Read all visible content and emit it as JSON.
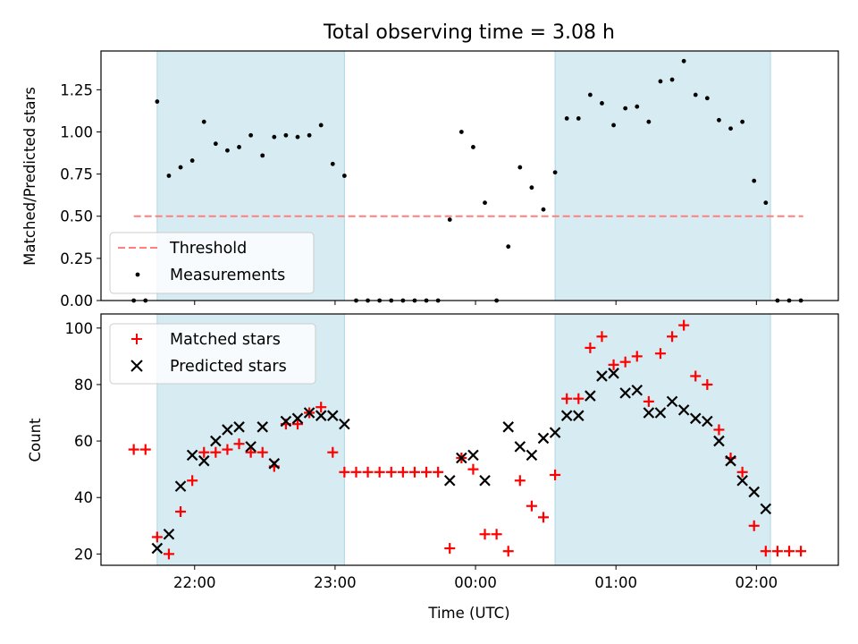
{
  "chart_data": [
    {
      "type": "scatter",
      "title": "Total observing time = 3.08 h",
      "xlabel": "",
      "ylabel": "Matched/Predicted stars",
      "xlim": [
        "21:20",
        "02:35"
      ],
      "ylim": [
        0,
        1.48
      ],
      "yticks": [
        0.0,
        0.25,
        0.5,
        0.75,
        1.0,
        1.25
      ],
      "ytick_labels": [
        "0.00",
        "0.25",
        "0.50",
        "0.75",
        "1.00",
        "1.25"
      ],
      "legend": {
        "placement": "lower-left",
        "entries": [
          "Threshold",
          "Measurements"
        ]
      },
      "shaded_intervals": [
        [
          "21:44",
          "23:04"
        ],
        [
          "00:34",
          "02:06"
        ]
      ],
      "threshold": {
        "name": "Threshold",
        "x": [
          "21:34",
          "02:20"
        ],
        "value": 0.5,
        "color": "#ff7f7f",
        "style": "dashed"
      },
      "series": [
        {
          "name": "Measurements",
          "color": "#000000",
          "x": [
            "21:34",
            "21:39",
            "21:44",
            "21:49",
            "21:54",
            "21:59",
            "22:04",
            "22:09",
            "22:14",
            "22:19",
            "22:24",
            "22:29",
            "22:34",
            "22:39",
            "22:44",
            "22:49",
            "22:54",
            "22:59",
            "23:04",
            "23:09",
            "23:14",
            "23:19",
            "23:24",
            "23:29",
            "23:34",
            "23:39",
            "23:44",
            "23:49",
            "23:54",
            "23:59",
            "00:04",
            "00:09",
            "00:14",
            "00:19",
            "00:24",
            "00:29",
            "00:34",
            "00:39",
            "00:44",
            "00:49",
            "00:54",
            "00:59",
            "01:04",
            "01:09",
            "01:14",
            "01:19",
            "01:24",
            "01:29",
            "01:34",
            "01:39",
            "01:44",
            "01:49",
            "01:54",
            "01:59",
            "02:04",
            "02:09",
            "02:14",
            "02:19"
          ],
          "y": [
            0.0,
            0.0,
            1.18,
            0.74,
            0.79,
            0.83,
            1.06,
            0.93,
            0.89,
            0.91,
            0.98,
            0.86,
            0.97,
            0.98,
            0.97,
            0.98,
            1.04,
            0.81,
            0.74,
            0.0,
            0.0,
            0.0,
            0.0,
            0.0,
            0.0,
            0.0,
            0.0,
            0.48,
            1.0,
            0.91,
            0.58,
            0.0,
            0.32,
            0.79,
            0.67,
            0.54,
            0.76,
            1.08,
            1.08,
            1.22,
            1.17,
            1.04,
            1.14,
            1.15,
            1.06,
            1.3,
            1.31,
            1.42,
            1.22,
            1.2,
            1.07,
            1.02,
            1.06,
            0.71,
            0.58,
            0.0,
            0.0,
            0.0
          ]
        }
      ]
    },
    {
      "type": "scatter",
      "title": "",
      "xlabel": "Time (UTC)",
      "ylabel": "Count",
      "xlim": [
        "21:20",
        "02:35"
      ],
      "ylim": [
        16,
        105
      ],
      "xtick_labels": [
        "22:00",
        "23:00",
        "00:00",
        "01:00",
        "02:00"
      ],
      "yticks": [
        20,
        40,
        60,
        80,
        100
      ],
      "ytick_labels": [
        "20",
        "40",
        "60",
        "80",
        "100"
      ],
      "legend": {
        "placement": "upper-left",
        "entries": [
          "Matched stars",
          "Predicted stars"
        ]
      },
      "shaded_intervals": [
        [
          "21:44",
          "23:04"
        ],
        [
          "00:34",
          "02:06"
        ]
      ],
      "series": [
        {
          "name": "Matched stars",
          "marker": "plus",
          "color": "#ff0000",
          "x": [
            "21:34",
            "21:39",
            "21:44",
            "21:49",
            "21:54",
            "21:59",
            "22:04",
            "22:09",
            "22:14",
            "22:19",
            "22:24",
            "22:29",
            "22:34",
            "22:39",
            "22:44",
            "22:49",
            "22:54",
            "22:59",
            "23:04",
            "23:09",
            "23:14",
            "23:19",
            "23:24",
            "23:29",
            "23:34",
            "23:39",
            "23:44",
            "23:49",
            "23:54",
            "23:59",
            "00:04",
            "00:09",
            "00:14",
            "00:19",
            "00:24",
            "00:29",
            "00:34",
            "00:39",
            "00:44",
            "00:49",
            "00:54",
            "00:59",
            "01:04",
            "01:09",
            "01:14",
            "01:19",
            "01:24",
            "01:29",
            "01:34",
            "01:39",
            "01:44",
            "01:49",
            "01:54",
            "01:59",
            "02:04",
            "02:09",
            "02:14",
            "02:19"
          ],
          "y": [
            57,
            57,
            26,
            20,
            35,
            46,
            56,
            56,
            57,
            59,
            56,
            56,
            51,
            66,
            66,
            70,
            72,
            56,
            49,
            49,
            49,
            49,
            49,
            49,
            49,
            49,
            49,
            22,
            54,
            50,
            27,
            27,
            21,
            46,
            37,
            33,
            48,
            75,
            75,
            93,
            97,
            87,
            88,
            90,
            74,
            91,
            97,
            101,
            83,
            80,
            64,
            54,
            49,
            30,
            21,
            21,
            21,
            21
          ]
        },
        {
          "name": "Predicted stars",
          "marker": "x",
          "color": "#000000",
          "x": [
            "21:44",
            "21:49",
            "21:54",
            "21:59",
            "22:04",
            "22:09",
            "22:14",
            "22:19",
            "22:24",
            "22:29",
            "22:34",
            "22:39",
            "22:44",
            "22:49",
            "22:54",
            "22:59",
            "23:04",
            "23:49",
            "23:54",
            "23:59",
            "00:04",
            "00:14",
            "00:19",
            "00:24",
            "00:29",
            "00:34",
            "00:39",
            "00:44",
            "00:49",
            "00:54",
            "00:59",
            "01:04",
            "01:09",
            "01:14",
            "01:19",
            "01:24",
            "01:29",
            "01:34",
            "01:39",
            "01:44",
            "01:49",
            "01:54",
            "01:59",
            "02:04"
          ],
          "y": [
            22,
            27,
            44,
            55,
            53,
            60,
            64,
            65,
            58,
            65,
            52,
            67,
            68,
            70,
            69,
            69,
            66,
            46,
            54,
            55,
            46,
            65,
            58,
            55,
            61,
            63,
            69,
            69,
            76,
            83,
            84,
            77,
            78,
            70,
            70,
            74,
            71,
            68,
            67,
            60,
            53,
            46,
            42,
            36
          ]
        }
      ]
    }
  ]
}
